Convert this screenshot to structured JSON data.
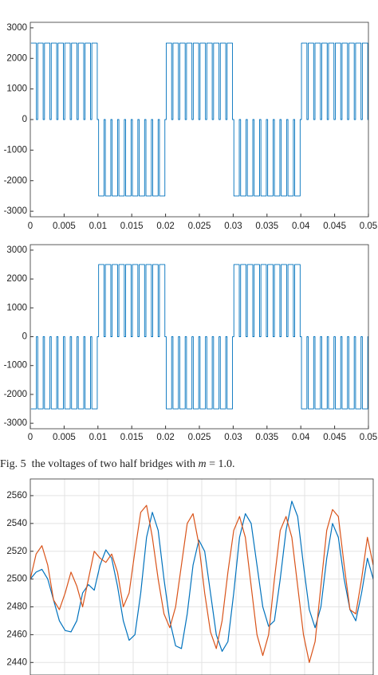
{
  "chart_data": [
    {
      "type": "line",
      "drawstyle": "steps-post",
      "x": [
        0.0001,
        0.0009,
        0.0011,
        0.0019,
        0.0021,
        0.0029,
        0.0031,
        0.0039,
        0.0041,
        0.0049,
        0.0051,
        0.0059,
        0.0061,
        0.0069,
        0.0071,
        0.0079,
        0.0081,
        0.0089,
        0.0091,
        0.0099,
        0.0101,
        0.0109,
        0.0111,
        0.0119,
        0.0121,
        0.0129,
        0.0131,
        0.0139,
        0.0141,
        0.0149,
        0.0151,
        0.0159,
        0.0161,
        0.0169,
        0.0171,
        0.0179,
        0.0181,
        0.0189,
        0.0191,
        0.0199,
        0.0201,
        0.0209,
        0.0211,
        0.0219,
        0.0221,
        0.0229,
        0.0231,
        0.0239,
        0.0241,
        0.0249,
        0.0251,
        0.0259,
        0.0261,
        0.0269,
        0.0271,
        0.0279,
        0.0281,
        0.0289,
        0.0291,
        0.0299,
        0.0301,
        0.0309,
        0.0311,
        0.0319,
        0.0321,
        0.0329,
        0.0331,
        0.0339,
        0.0341,
        0.0349,
        0.0351,
        0.0359,
        0.0361,
        0.0369,
        0.0371,
        0.0379,
        0.0381,
        0.0389,
        0.0391,
        0.0399,
        0.0401,
        0.0409,
        0.0411,
        0.0419,
        0.0421,
        0.0429,
        0.0431,
        0.0439,
        0.0441,
        0.0449,
        0.0451,
        0.0459,
        0.0461,
        0.0469,
        0.0471,
        0.0479,
        0.0481,
        0.0489,
        0.0491,
        0.0499
      ],
      "series": [
        {
          "color": "#0072bd",
          "values": [
            2500,
            0,
            2500,
            0,
            2500,
            0,
            2500,
            0,
            2500,
            0,
            2500,
            0,
            2500,
            0,
            2500,
            0,
            2500,
            0,
            2500,
            0,
            -2500,
            0,
            -2500,
            0,
            -2500,
            0,
            -2500,
            0,
            -2500,
            0,
            -2500,
            0,
            -2500,
            0,
            -2500,
            0,
            -2500,
            0,
            -2500,
            0,
            2500,
            0,
            2500,
            0,
            2500,
            0,
            2500,
            0,
            2500,
            0,
            2500,
            0,
            2500,
            0,
            2500,
            0,
            2500,
            0,
            2500,
            0,
            -2500,
            0,
            -2500,
            0,
            -2500,
            0,
            -2500,
            0,
            -2500,
            0,
            -2500,
            0,
            -2500,
            0,
            -2500,
            0,
            -2500,
            0,
            -2500,
            0,
            2500,
            0,
            2500,
            0,
            2500,
            0,
            2500,
            0,
            2500,
            0,
            2500,
            0,
            2500,
            0,
            2500,
            0,
            2500,
            0,
            2500,
            0
          ]
        }
      ],
      "xlim": [
        0,
        0.05
      ],
      "xticks": [
        0,
        0.005,
        0.01,
        0.015,
        0.02,
        0.025,
        0.03,
        0.035,
        0.04,
        0.045,
        0.05
      ],
      "ylim": [
        -3180,
        3180
      ],
      "yticks": [
        -3000,
        -2000,
        -1000,
        0,
        1000,
        2000,
        3000
      ],
      "grid": false
    },
    {
      "type": "line",
      "drawstyle": "steps-post",
      "x": [
        0.0001,
        0.0009,
        0.0011,
        0.0019,
        0.0021,
        0.0029,
        0.0031,
        0.0039,
        0.0041,
        0.0049,
        0.0051,
        0.0059,
        0.0061,
        0.0069,
        0.0071,
        0.0079,
        0.0081,
        0.0089,
        0.0091,
        0.0099,
        0.0101,
        0.0109,
        0.0111,
        0.0119,
        0.0121,
        0.0129,
        0.0131,
        0.0139,
        0.0141,
        0.0149,
        0.0151,
        0.0159,
        0.0161,
        0.0169,
        0.0171,
        0.0179,
        0.0181,
        0.0189,
        0.0191,
        0.0199,
        0.0201,
        0.0209,
        0.0211,
        0.0219,
        0.0221,
        0.0229,
        0.0231,
        0.0239,
        0.0241,
        0.0249,
        0.0251,
        0.0259,
        0.0261,
        0.0269,
        0.0271,
        0.0279,
        0.0281,
        0.0289,
        0.0291,
        0.0299,
        0.0301,
        0.0309,
        0.0311,
        0.0319,
        0.0321,
        0.0329,
        0.0331,
        0.0339,
        0.0341,
        0.0349,
        0.0351,
        0.0359,
        0.0361,
        0.0369,
        0.0371,
        0.0379,
        0.0381,
        0.0389,
        0.0391,
        0.0399,
        0.0401,
        0.0409,
        0.0411,
        0.0419,
        0.0421,
        0.0429,
        0.0431,
        0.0439,
        0.0441,
        0.0449,
        0.0451,
        0.0459,
        0.0461,
        0.0469,
        0.0471,
        0.0479,
        0.0481,
        0.0489,
        0.0491,
        0.0499
      ],
      "series": [
        {
          "color": "#0072bd",
          "values": [
            -2500,
            0,
            -2500,
            0,
            -2500,
            0,
            -2500,
            0,
            -2500,
            0,
            -2500,
            0,
            -2500,
            0,
            -2500,
            0,
            -2500,
            0,
            -2500,
            0,
            2500,
            0,
            2500,
            0,
            2500,
            0,
            2500,
            0,
            2500,
            0,
            2500,
            0,
            2500,
            0,
            2500,
            0,
            2500,
            0,
            2500,
            0,
            -2500,
            0,
            -2500,
            0,
            -2500,
            0,
            -2500,
            0,
            -2500,
            0,
            -2500,
            0,
            -2500,
            0,
            -2500,
            0,
            -2500,
            0,
            -2500,
            0,
            2500,
            0,
            2500,
            0,
            2500,
            0,
            2500,
            0,
            2500,
            0,
            2500,
            0,
            2500,
            0,
            2500,
            0,
            2500,
            0,
            2500,
            0,
            -2500,
            0,
            -2500,
            0,
            -2500,
            0,
            -2500,
            0,
            -2500,
            0,
            -2500,
            0,
            -2500,
            0,
            -2500,
            0,
            -2500,
            0,
            -2500,
            0
          ]
        }
      ],
      "xlim": [
        0,
        0.05
      ],
      "xticks": [
        0,
        0.005,
        0.01,
        0.015,
        0.02,
        0.025,
        0.03,
        0.035,
        0.04,
        0.045,
        0.05
      ],
      "ylim": [
        -3190,
        3190
      ],
      "yticks": [
        -3000,
        -2000,
        -1000,
        0,
        1000,
        2000,
        3000
      ],
      "grid": false
    },
    {
      "type": "line",
      "series": [
        {
          "color": "#0072bd",
          "values": [
            2500,
            2505,
            2507,
            2500,
            2485,
            2470,
            2463,
            2462,
            2470,
            2490,
            2496,
            2492,
            2510,
            2521,
            2515,
            2495,
            2470,
            2456,
            2460,
            2490,
            2530,
            2548,
            2535,
            2500,
            2470,
            2452,
            2450,
            2475,
            2510,
            2528,
            2520,
            2490,
            2460,
            2448,
            2455,
            2490,
            2530,
            2547,
            2540,
            2510,
            2480,
            2466,
            2470,
            2500,
            2535,
            2556,
            2545,
            2510,
            2478,
            2465,
            2480,
            2515,
            2540,
            2530,
            2500,
            2478,
            2470,
            2490,
            2515,
            2500
          ]
        },
        {
          "color": "#d95319",
          "values": [
            2500,
            2518,
            2524,
            2510,
            2485,
            2478,
            2490,
            2505,
            2495,
            2480,
            2500,
            2520,
            2515,
            2512,
            2518,
            2505,
            2480,
            2490,
            2520,
            2548,
            2553,
            2530,
            2500,
            2475,
            2465,
            2480,
            2510,
            2540,
            2547,
            2525,
            2490,
            2462,
            2450,
            2470,
            2505,
            2535,
            2545,
            2530,
            2495,
            2460,
            2445,
            2460,
            2500,
            2535,
            2545,
            2530,
            2495,
            2460,
            2440,
            2455,
            2495,
            2535,
            2550,
            2545,
            2510,
            2478,
            2475,
            2500,
            2530,
            2510
          ]
        }
      ],
      "ylim": [
        2431,
        2572
      ],
      "yticks": [
        2440,
        2460,
        2480,
        2500,
        2520,
        2540,
        2560
      ],
      "grid": true
    }
  ],
  "caption": {
    "prefix": "Fig. 5  the voltages of two half bridges with ",
    "symbol": "m",
    "suffix": " = 1.0."
  }
}
